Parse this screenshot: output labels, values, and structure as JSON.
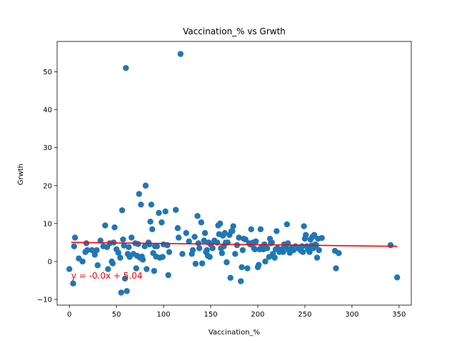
{
  "chart_data": {
    "type": "scatter",
    "title": "Vaccination_% vs Grwth",
    "xlabel": "Vaccination_%",
    "ylabel": "Grwth",
    "xlim": [
      -13,
      363
    ],
    "ylim": [
      -11.5,
      58
    ],
    "xticks": [
      0,
      50,
      100,
      150,
      200,
      250,
      300,
      350
    ],
    "yticks": [
      -10,
      0,
      10,
      20,
      30,
      40,
      50
    ],
    "grid": false,
    "colors": {
      "points": "#1f77b4",
      "regression": "#ff0000",
      "annotation": "#ff0000"
    },
    "regression": {
      "slope": -0.003,
      "intercept": 5.04,
      "x_range": [
        2,
        348
      ]
    },
    "annotation": {
      "text": "y = -0.0x + 5.04",
      "x": 2,
      "y": -4.5
    },
    "points": [
      [
        0,
        -2
      ],
      [
        4,
        -5.8
      ],
      [
        5,
        4
      ],
      [
        6,
        6.3
      ],
      [
        10,
        0.8
      ],
      [
        14,
        0
      ],
      [
        17,
        2.5
      ],
      [
        18,
        4.8
      ],
      [
        19,
        3
      ],
      [
        24,
        3
      ],
      [
        27,
        1.8
      ],
      [
        29,
        3
      ],
      [
        30,
        -1
      ],
      [
        33,
        5.5
      ],
      [
        36,
        4
      ],
      [
        38,
        9.5
      ],
      [
        40,
        3.8
      ],
      [
        41,
        -2
      ],
      [
        43,
        4.8
      ],
      [
        45,
        0
      ],
      [
        46,
        -0.5
      ],
      [
        47,
        5
      ],
      [
        48,
        9
      ],
      [
        50,
        3.2
      ],
      [
        52,
        2.3
      ],
      [
        54,
        1
      ],
      [
        55,
        -8.2
      ],
      [
        56,
        13.5
      ],
      [
        57,
        5.8
      ],
      [
        58,
        4.2
      ],
      [
        59,
        -4.5
      ],
      [
        60,
        51
      ],
      [
        61,
        -7.8
      ],
      [
        62,
        2
      ],
      [
        63,
        3.8
      ],
      [
        64,
        1.2
      ],
      [
        66,
        6.3
      ],
      [
        68,
        2
      ],
      [
        70,
        4.8
      ],
      [
        71,
        -1.8
      ],
      [
        72,
        1.5
      ],
      [
        73,
        4.6
      ],
      [
        74,
        17.8
      ],
      [
        75,
        1
      ],
      [
        76,
        15
      ],
      [
        77,
        1.3
      ],
      [
        78,
        0.5
      ],
      [
        80,
        4
      ],
      [
        81,
        20
      ],
      [
        82,
        -2
      ],
      [
        84,
        5
      ],
      [
        85,
        4.5
      ],
      [
        86,
        10.5
      ],
      [
        87,
        15
      ],
      [
        88,
        8.5
      ],
      [
        89,
        2.2
      ],
      [
        90,
        -2.5
      ],
      [
        91,
        4
      ],
      [
        92,
        1.3
      ],
      [
        93,
        4
      ],
      [
        95,
        12.8
      ],
      [
        96,
        1
      ],
      [
        98,
        10.3
      ],
      [
        99,
        1.2
      ],
      [
        100,
        4.5
      ],
      [
        102,
        13.2
      ],
      [
        104,
        4.3
      ],
      [
        105,
        -3.6
      ],
      [
        106,
        2.5
      ],
      [
        113,
        13.6
      ],
      [
        115,
        8.8
      ],
      [
        116,
        6.3
      ],
      [
        118,
        54.7
      ],
      [
        120,
        2
      ],
      [
        124,
        7.5
      ],
      [
        127,
        5.3
      ],
      [
        130,
        2
      ],
      [
        131,
        3
      ],
      [
        133,
        6.5
      ],
      [
        134,
        -0.6
      ],
      [
        136,
        12
      ],
      [
        137,
        4.8
      ],
      [
        138,
        3.5
      ],
      [
        140,
        10.3
      ],
      [
        141,
        -0.5
      ],
      [
        143,
        5.5
      ],
      [
        144,
        7.5
      ],
      [
        145,
        2.5
      ],
      [
        146,
        3
      ],
      [
        147,
        1.5
      ],
      [
        148,
        5
      ],
      [
        149,
        1.2
      ],
      [
        150,
        4.5
      ],
      [
        152,
        3.5
      ],
      [
        154,
        5.5
      ],
      [
        157,
        5
      ],
      [
        158,
        9.5
      ],
      [
        159,
        7.2
      ],
      [
        160,
        10
      ],
      [
        161,
        3.5
      ],
      [
        162,
        2.2
      ],
      [
        163,
        6.8
      ],
      [
        164,
        4
      ],
      [
        165,
        7.5
      ],
      [
        166,
        5
      ],
      [
        167,
        -0.2
      ],
      [
        168,
        5
      ],
      [
        170,
        7
      ],
      [
        171,
        -4.3
      ],
      [
        172,
        8
      ],
      [
        173,
        8
      ],
      [
        174,
        9.3
      ],
      [
        176,
        2
      ],
      [
        178,
        4.3
      ],
      [
        180,
        6.3
      ],
      [
        182,
        -5.2
      ],
      [
        183,
        -1.5
      ],
      [
        184,
        3
      ],
      [
        185,
        6
      ],
      [
        187,
        5.8
      ],
      [
        189,
        -1.8
      ],
      [
        191,
        4.8
      ],
      [
        192,
        4.5
      ],
      [
        193,
        8.5
      ],
      [
        195,
        5
      ],
      [
        196,
        3.5
      ],
      [
        197,
        3.2
      ],
      [
        198,
        5.3
      ],
      [
        200,
        -1.5
      ],
      [
        201,
        -0.9
      ],
      [
        202,
        3.2
      ],
      [
        203,
        8.5
      ],
      [
        204,
        3.8
      ],
      [
        206,
        3.2
      ],
      [
        207,
        4.5
      ],
      [
        208,
        0
      ],
      [
        210,
        3.5
      ],
      [
        212,
        1.2
      ],
      [
        213,
        6
      ],
      [
        214,
        4.8
      ],
      [
        215,
        5
      ],
      [
        216,
        2
      ],
      [
        218,
        1
      ],
      [
        219,
        3.2
      ],
      [
        220,
        8
      ],
      [
        221,
        3.5
      ],
      [
        223,
        2.5
      ],
      [
        225,
        2.8
      ],
      [
        226,
        3.3
      ],
      [
        227,
        2.5
      ],
      [
        228,
        4.5
      ],
      [
        230,
        3.8
      ],
      [
        231,
        9.8
      ],
      [
        232,
        4.8
      ],
      [
        233,
        3
      ],
      [
        234,
        2.3
      ],
      [
        235,
        2.8
      ],
      [
        236,
        3.5
      ],
      [
        238,
        3
      ],
      [
        240,
        4
      ],
      [
        242,
        3.5
      ],
      [
        245,
        3.2
      ],
      [
        246,
        2.8
      ],
      [
        247,
        4
      ],
      [
        248,
        2.5
      ],
      [
        249,
        9.3
      ],
      [
        250,
        6
      ],
      [
        251,
        7
      ],
      [
        252,
        4
      ],
      [
        253,
        3.5
      ],
      [
        254,
        3
      ],
      [
        255,
        2.5
      ],
      [
        256,
        5.8
      ],
      [
        257,
        4.2
      ],
      [
        258,
        6.5
      ],
      [
        259,
        3.5
      ],
      [
        260,
        7
      ],
      [
        261,
        4.5
      ],
      [
        262,
        4.3
      ],
      [
        263,
        1
      ],
      [
        264,
        6
      ],
      [
        265,
        3
      ],
      [
        268,
        6.2
      ],
      [
        282,
        2.8
      ],
      [
        283,
        -1.8
      ],
      [
        286,
        2.2
      ],
      [
        341,
        4.3
      ],
      [
        348,
        -4.2
      ]
    ]
  }
}
